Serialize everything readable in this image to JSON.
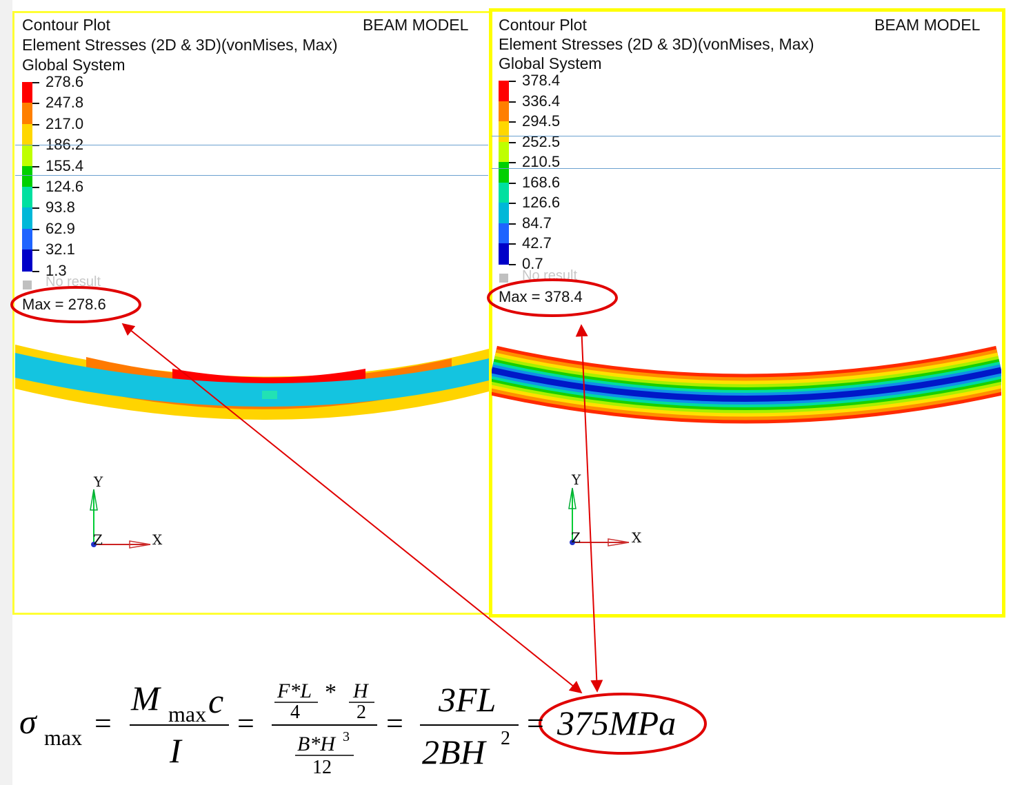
{
  "left_panel": {
    "title": "Contour Plot",
    "subtitle": "Element Stresses (2D & 3D)(vonMises, Max)",
    "system": "Global System",
    "model": "BEAM MODEL",
    "legend_values": [
      "278.6",
      "247.8",
      "217.0",
      "186.2",
      "155.4",
      "124.6",
      "93.8",
      "62.9",
      "32.1",
      "1.3"
    ],
    "no_result": "No result",
    "max_label": "Max = 278.6",
    "axis": {
      "y": "Y",
      "x": "X",
      "z": "Z"
    }
  },
  "right_panel": {
    "title": "Contour Plot",
    "subtitle": "Element Stresses (2D & 3D)(vonMises, Max)",
    "system": "Global System",
    "model": "BEAM MODEL",
    "legend_values": [
      "378.4",
      "336.4",
      "294.5",
      "252.5",
      "210.5",
      "168.6",
      "126.6",
      "84.7",
      "42.7",
      "0.7"
    ],
    "no_result": "No result",
    "max_label": "Max = 378.4",
    "axis": {
      "y": "Y",
      "x": "X",
      "z": "Z"
    }
  },
  "legend_colors": [
    "#ff0000",
    "#ff7f00",
    "#ffd700",
    "#bfff00",
    "#00d000",
    "#00e0a0",
    "#00b8d8",
    "#1e64ff",
    "#0000c8"
  ],
  "annotation_color": "#e00000",
  "formula": {
    "sigma": "σ",
    "max_sub": "max",
    "equals": "=",
    "M": "M",
    "c": "c",
    "I": "I",
    "FL": "F*L",
    "four": "4",
    "star": "*",
    "H": "H",
    "two": "2",
    "BH": "B*H",
    "cube": "3",
    "twelve": "12",
    "threeFL": "3FL",
    "twoBH": "2BH",
    "square": "2",
    "result": "375MPa"
  }
}
